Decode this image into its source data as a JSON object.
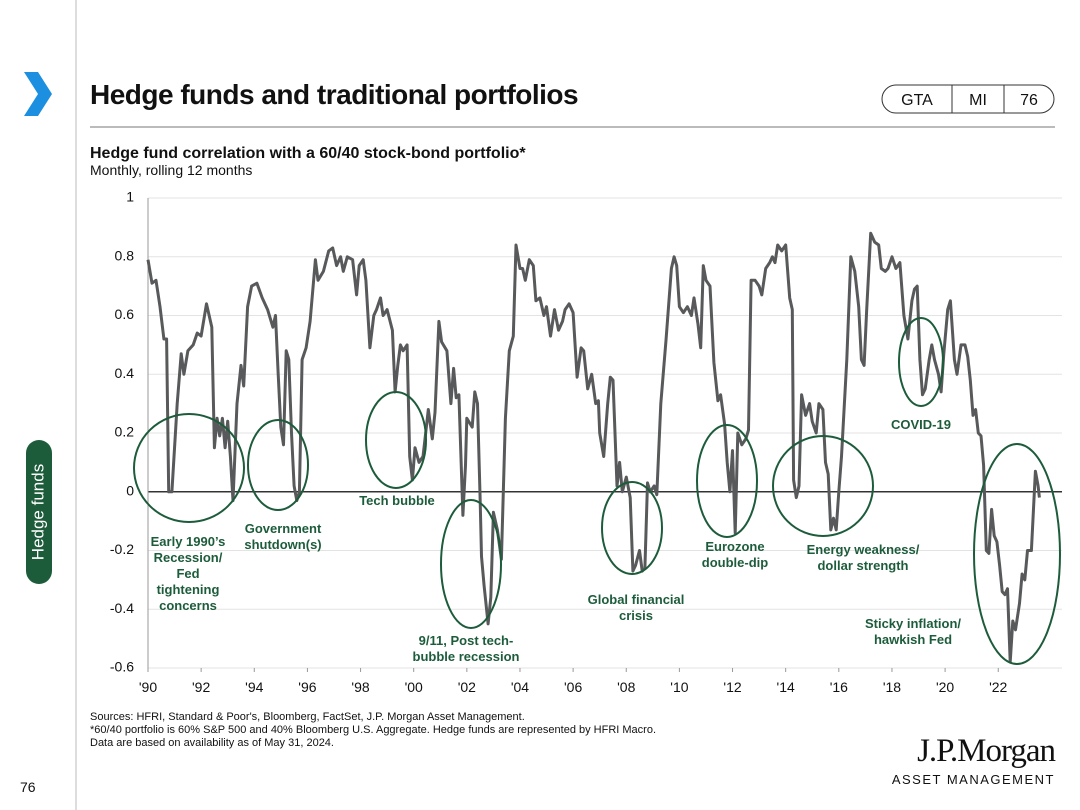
{
  "page": {
    "title": "Hedge funds and traditional portfolios",
    "tabs": [
      "GTA",
      "MI",
      "76"
    ],
    "side_label": "Hedge funds",
    "page_number": "76",
    "sources": [
      "Sources: HFRI, Standard & Poor's, Bloomberg, FactSet, J.P. Morgan Asset Management.",
      "*60/40 portfolio is 60% S&P 500 and 40% Bloomberg U.S. Aggregate. Hedge funds are represented by HFRI Macro.",
      "Data are based on availability as of May 31, 2024."
    ],
    "logo": "J.P.Morgan",
    "logo_sub": "ASSET MANAGEMENT"
  },
  "chart_data": {
    "type": "line",
    "title": "Hedge fund correlation with a 60/40 stock-bond portfolio*",
    "subtitle": "Monthly, rolling 12 months",
    "color": "#58595b",
    "grid": true,
    "xlim": [
      1990,
      2024.4
    ],
    "xticks": [
      {
        "value": 1990,
        "label": "'90"
      },
      {
        "value": 1992,
        "label": "'92"
      },
      {
        "value": 1994,
        "label": "'94"
      },
      {
        "value": 1996,
        "label": "'96"
      },
      {
        "value": 1998,
        "label": "'98"
      },
      {
        "value": 2000,
        "label": "'00"
      },
      {
        "value": 2002,
        "label": "'02"
      },
      {
        "value": 2004,
        "label": "'04"
      },
      {
        "value": 2006,
        "label": "'06"
      },
      {
        "value": 2008,
        "label": "'08"
      },
      {
        "value": 2010,
        "label": "'10"
      },
      {
        "value": 2012,
        "label": "'12"
      },
      {
        "value": 2014,
        "label": "'14"
      },
      {
        "value": 2016,
        "label": "'16"
      },
      {
        "value": 2018,
        "label": "'18"
      },
      {
        "value": 2020,
        "label": "'20"
      },
      {
        "value": 2022,
        "label": "'22"
      }
    ],
    "ylim": [
      -0.6,
      1
    ],
    "yticks": [
      1,
      0.8,
      0.6,
      0.4,
      0.2,
      0,
      -0.2,
      -0.4,
      -0.6
    ],
    "annotations": [
      [
        "Early 1990’s",
        "Recession/",
        "Fed",
        "tightening",
        "concerns"
      ],
      [
        "Government",
        "shutdown(s)"
      ],
      [
        "Tech bubble"
      ],
      [
        "9/11, Post tech-",
        "bubble recession"
      ],
      [
        "Global financial",
        "crisis"
      ],
      [
        "Eurozone",
        "double-dip"
      ],
      [
        "Energy weakness/",
        "dollar strength"
      ],
      [
        "COVID-19"
      ],
      [
        "Sticky inflation/",
        "hawkish Fed"
      ]
    ],
    "x": [
      1990.0,
      1990.15,
      1990.3,
      1990.45,
      1990.6,
      1990.7,
      1990.78,
      1990.9,
      1991.1,
      1991.25,
      1991.35,
      1991.5,
      1991.7,
      1991.85,
      1992.0,
      1992.2,
      1992.4,
      1992.5,
      1992.6,
      1992.7,
      1992.8,
      1992.9,
      1993.0,
      1993.1,
      1993.2,
      1993.35,
      1993.5,
      1993.6,
      1993.75,
      1993.9,
      1994.1,
      1994.3,
      1994.5,
      1994.7,
      1994.8,
      1994.9,
      1995.0,
      1995.1,
      1995.2,
      1995.3,
      1995.4,
      1995.5,
      1995.6,
      1995.7,
      1995.8,
      1995.95,
      1996.1,
      1996.3,
      1996.4,
      1996.6,
      1996.8,
      1996.95,
      1997.1,
      1997.25,
      1997.35,
      1997.5,
      1997.7,
      1997.85,
      1997.95,
      1998.1,
      1998.2,
      1998.35,
      1998.5,
      1998.6,
      1998.75,
      1998.85,
      1999.0,
      1999.2,
      1999.3,
      1999.4,
      1999.5,
      1999.6,
      1999.75,
      1999.85,
      1999.95,
      2000.05,
      2000.2,
      2000.35,
      2000.5,
      2000.55,
      2000.7,
      2000.8,
      2000.95,
      2001.05,
      2001.25,
      2001.4,
      2001.5,
      2001.6,
      2001.7,
      2001.85,
      2001.95,
      2002.0,
      2002.2,
      2002.3,
      2002.4,
      2002.5,
      2002.55,
      2002.65,
      2002.8,
      2002.9,
      2003.0,
      2003.15,
      2003.3,
      2003.45,
      2003.6,
      2003.75,
      2003.85,
      2004.0,
      2004.1,
      2004.2,
      2004.35,
      2004.5,
      2004.6,
      2004.75,
      2004.9,
      2005.0,
      2005.15,
      2005.3,
      2005.45,
      2005.6,
      2005.7,
      2005.85,
      2006.0,
      2006.15,
      2006.3,
      2006.4,
      2006.55,
      2006.7,
      2006.85,
      2006.95,
      2007.0,
      2007.15,
      2007.3,
      2007.4,
      2007.5,
      2007.65,
      2007.75,
      2007.85,
      2008.0,
      2008.15,
      2008.25,
      2008.35,
      2008.5,
      2008.6,
      2008.7,
      2008.8,
      2008.9,
      2009.05,
      2009.15,
      2009.3,
      2009.5,
      2009.7,
      2009.8,
      2009.9,
      2010.0,
      2010.15,
      2010.3,
      2010.45,
      2010.55,
      2010.7,
      2010.8,
      2010.9,
      2011.0,
      2011.15,
      2011.3,
      2011.45,
      2011.55,
      2011.7,
      2011.8,
      2011.9,
      2012.0,
      2012.1,
      2012.2,
      2012.35,
      2012.5,
      2012.6,
      2012.7,
      2012.85,
      2013.0,
      2013.1,
      2013.25,
      2013.4,
      2013.5,
      2013.6,
      2013.7,
      2013.85,
      2014.0,
      2014.15,
      2014.25,
      2014.3,
      2014.4,
      2014.5,
      2014.6,
      2014.75,
      2014.9,
      2015.0,
      2015.15,
      2015.25,
      2015.4,
      2015.5,
      2015.6,
      2015.7,
      2015.8,
      2015.9,
      2016.0,
      2016.1,
      2016.3,
      2016.45,
      2016.6,
      2016.75,
      2016.85,
      2016.95,
      2017.05,
      2017.2,
      2017.35,
      2017.5,
      2017.6,
      2017.75,
      2017.85,
      2018.0,
      2018.15,
      2018.3,
      2018.45,
      2018.6,
      2018.75,
      2018.85,
      2018.95,
      2019.05,
      2019.15,
      2019.25,
      2019.4,
      2019.5,
      2019.6,
      2019.75,
      2019.85,
      2019.95,
      2020.1,
      2020.2,
      2020.35,
      2020.45,
      2020.6,
      2020.75,
      2020.85,
      2020.95,
      2021.05,
      2021.15,
      2021.25,
      2021.35,
      2021.45,
      2021.55,
      2021.65,
      2021.75,
      2021.85,
      2021.95,
      2022.05,
      2022.15,
      2022.25,
      2022.35,
      2022.45,
      2022.55,
      2022.65,
      2022.8,
      2022.9,
      2023.0,
      2023.1,
      2023.25,
      2023.4,
      2023.5,
      2023.55
    ],
    "values": [
      0.79,
      0.71,
      0.72,
      0.63,
      0.52,
      0.52,
      0.0,
      0.0,
      0.3,
      0.47,
      0.4,
      0.48,
      0.5,
      0.54,
      0.53,
      0.64,
      0.56,
      0.15,
      0.25,
      0.19,
      0.25,
      0.15,
      0.24,
      0.12,
      -0.03,
      0.3,
      0.43,
      0.36,
      0.63,
      0.7,
      0.71,
      0.66,
      0.62,
      0.56,
      0.6,
      0.4,
      0.22,
      0.16,
      0.48,
      0.45,
      0.2,
      0.02,
      -0.03,
      0.0,
      0.45,
      0.49,
      0.58,
      0.79,
      0.72,
      0.75,
      0.82,
      0.83,
      0.77,
      0.8,
      0.75,
      0.8,
      0.79,
      0.67,
      0.77,
      0.79,
      0.72,
      0.49,
      0.6,
      0.62,
      0.66,
      0.6,
      0.62,
      0.55,
      0.34,
      0.43,
      0.5,
      0.48,
      0.5,
      0.12,
      0.04,
      0.15,
      0.1,
      0.12,
      0.24,
      0.28,
      0.18,
      0.27,
      0.58,
      0.51,
      0.48,
      0.3,
      0.42,
      0.32,
      0.33,
      -0.08,
      0.09,
      0.25,
      0.22,
      0.34,
      0.3,
      -0.02,
      -0.22,
      -0.32,
      -0.45,
      -0.36,
      -0.07,
      -0.13,
      -0.23,
      0.25,
      0.48,
      0.53,
      0.84,
      0.76,
      0.76,
      0.72,
      0.79,
      0.77,
      0.65,
      0.66,
      0.6,
      0.63,
      0.53,
      0.62,
      0.55,
      0.58,
      0.62,
      0.64,
      0.61,
      0.39,
      0.49,
      0.48,
      0.35,
      0.4,
      0.3,
      0.31,
      0.2,
      0.12,
      0.3,
      0.39,
      0.38,
      0.02,
      0.1,
      0.0,
      0.05,
      -0.02,
      -0.27,
      -0.25,
      -0.2,
      -0.27,
      -0.26,
      0.03,
      0.0,
      0.02,
      -0.01,
      0.3,
      0.52,
      0.76,
      0.8,
      0.77,
      0.63,
      0.61,
      0.63,
      0.6,
      0.66,
      0.57,
      0.49,
      0.77,
      0.72,
      0.7,
      0.44,
      0.31,
      0.33,
      0.23,
      0.1,
      0.0,
      0.14,
      -0.14,
      0.2,
      0.16,
      0.18,
      0.21,
      0.72,
      0.72,
      0.7,
      0.67,
      0.76,
      0.78,
      0.8,
      0.78,
      0.84,
      0.82,
      0.84,
      0.66,
      0.62,
      0.04,
      -0.02,
      0.02,
      0.33,
      0.26,
      0.3,
      0.24,
      0.2,
      0.3,
      0.28,
      0.1,
      0.06,
      -0.13,
      -0.09,
      -0.13,
      0.0,
      0.12,
      0.45,
      0.8,
      0.75,
      0.63,
      0.45,
      0.43,
      0.62,
      0.88,
      0.85,
      0.84,
      0.76,
      0.75,
      0.76,
      0.8,
      0.76,
      0.78,
      0.6,
      0.52,
      0.65,
      0.69,
      0.7,
      0.45,
      0.33,
      0.35,
      0.45,
      0.5,
      0.45,
      0.4,
      0.34,
      0.47,
      0.62,
      0.65,
      0.45,
      0.4,
      0.5,
      0.5,
      0.46,
      0.38,
      0.26,
      0.28,
      0.2,
      0.19,
      0.09,
      -0.2,
      -0.21,
      -0.06,
      -0.15,
      -0.17,
      -0.25,
      -0.34,
      -0.35,
      -0.33,
      -0.58,
      -0.44,
      -0.47,
      -0.38,
      -0.28,
      -0.3,
      -0.2,
      -0.2,
      0.07,
      0.02,
      -0.02
    ]
  }
}
